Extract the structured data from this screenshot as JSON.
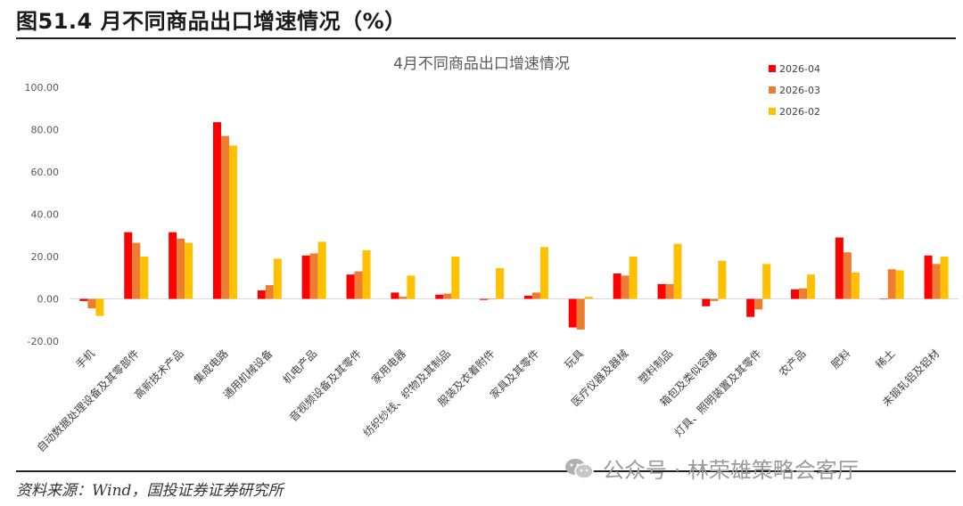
{
  "figure": {
    "title": "图51.4 月不同商品出口增速情况（%）",
    "source": "资料来源：Wind，国投证券证券研究所",
    "watermark": "公众号 · 林荣雄策略会客厅"
  },
  "chart_data": {
    "type": "bar",
    "title": "4月不同商品出口增速情况",
    "xlabel": "",
    "ylabel": "",
    "ylim": [
      -20,
      100
    ],
    "yticks": [
      "-20.00",
      "0.00",
      "20.00",
      "40.00",
      "60.00",
      "80.00",
      "100.00"
    ],
    "grid": false,
    "legend_position": "top-right",
    "categories": [
      "手机",
      "自动数据处理设备及其零部件",
      "高新技术产品",
      "集成电路",
      "通用机械设备",
      "机电产品",
      "音视频设备及其零件",
      "家用电器",
      "纺织纱线、织物及其制品",
      "服装及衣着附件",
      "家具及其零件",
      "玩具",
      "医疗仪器及器械",
      "塑料制品",
      "箱包及类似容器",
      "灯具、照明装置及其零件",
      "农产品",
      "肥料",
      "稀土",
      "未锻轧铝及铝材"
    ],
    "series": [
      {
        "name": "2026-04",
        "color": "#ff0000",
        "values": [
          -1,
          31.5,
          31.5,
          83.5,
          4,
          20.5,
          11.5,
          3,
          2,
          -0.5,
          1.5,
          -13.5,
          12,
          7,
          -3.5,
          -8.5,
          4.5,
          29,
          0,
          20.5
        ]
      },
      {
        "name": "2026-03",
        "color": "#ed7d31",
        "values": [
          -4.5,
          26.5,
          28.5,
          77,
          6.5,
          21.5,
          13,
          1,
          2.5,
          0,
          3,
          -14.5,
          11,
          7,
          -1,
          -5,
          5,
          22,
          14,
          16.5
        ]
      },
      {
        "name": "2026-02",
        "color": "#ffc000",
        "values": [
          -8,
          20,
          26.5,
          72.5,
          19,
          27,
          23,
          11,
          20,
          14.5,
          24.5,
          1,
          20,
          26,
          18,
          16.5,
          11.5,
          12.5,
          13.5,
          20
        ]
      }
    ]
  }
}
